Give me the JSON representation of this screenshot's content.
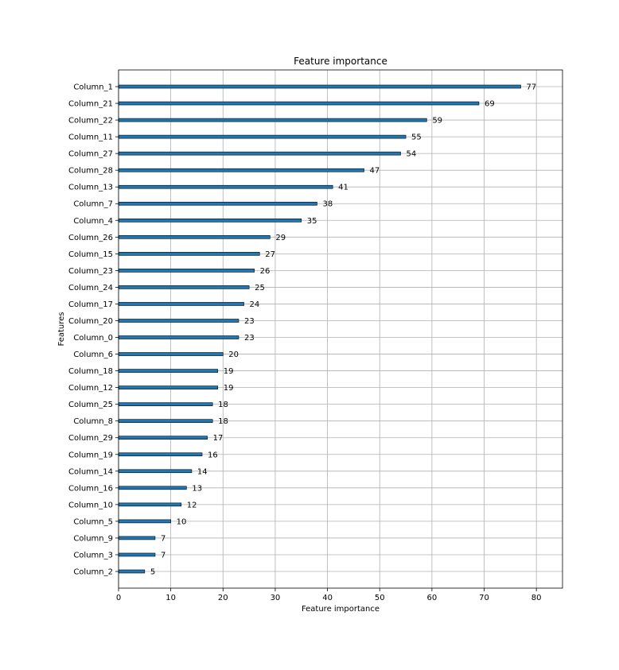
{
  "chart_data": {
    "type": "bar",
    "orientation": "horizontal",
    "title": "Feature importance",
    "xlabel": "Feature importance",
    "ylabel": "Features",
    "xlim": [
      0,
      85
    ],
    "xticks": [
      0,
      10,
      20,
      30,
      40,
      50,
      60,
      70,
      80
    ],
    "grid": true,
    "bar_color": "#1f77b4",
    "categories": [
      "Column_1",
      "Column_21",
      "Column_22",
      "Column_11",
      "Column_27",
      "Column_28",
      "Column_13",
      "Column_7",
      "Column_4",
      "Column_26",
      "Column_15",
      "Column_23",
      "Column_24",
      "Column_17",
      "Column_20",
      "Column_0",
      "Column_6",
      "Column_18",
      "Column_12",
      "Column_25",
      "Column_8",
      "Column_29",
      "Column_19",
      "Column_14",
      "Column_16",
      "Column_10",
      "Column_5",
      "Column_9",
      "Column_3",
      "Column_2"
    ],
    "values": [
      77,
      69,
      59,
      55,
      54,
      47,
      41,
      38,
      35,
      29,
      27,
      26,
      25,
      24,
      23,
      23,
      20,
      19,
      19,
      18,
      18,
      17,
      16,
      14,
      13,
      12,
      10,
      7,
      7,
      5
    ]
  }
}
